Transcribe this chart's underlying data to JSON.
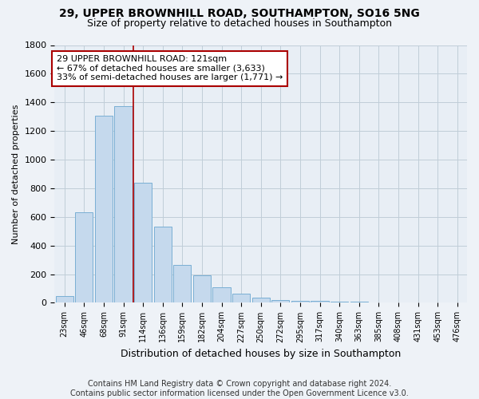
{
  "title": "29, UPPER BROWNHILL ROAD, SOUTHAMPTON, SO16 5NG",
  "subtitle": "Size of property relative to detached houses in Southampton",
  "xlabel": "Distribution of detached houses by size in Southampton",
  "ylabel": "Number of detached properties",
  "categories": [
    "23sqm",
    "46sqm",
    "68sqm",
    "91sqm",
    "114sqm",
    "136sqm",
    "159sqm",
    "182sqm",
    "204sqm",
    "227sqm",
    "250sqm",
    "272sqm",
    "295sqm",
    "317sqm",
    "340sqm",
    "363sqm",
    "385sqm",
    "408sqm",
    "431sqm",
    "453sqm",
    "476sqm"
  ],
  "values": [
    45,
    635,
    1305,
    1375,
    840,
    530,
    265,
    190,
    110,
    65,
    35,
    20,
    15,
    12,
    10,
    8,
    5,
    2,
    1,
    1,
    0
  ],
  "bar_color_normal": "#c5d9ed",
  "bar_edge_color": "#7aafd4",
  "highlight_index": 4,
  "annotation_text": "29 UPPER BROWNHILL ROAD: 121sqm\n← 67% of detached houses are smaller (3,633)\n33% of semi-detached houses are larger (1,771) →",
  "annotation_box_color": "#ffffff",
  "annotation_border_color": "#aa0000",
  "vline_color": "#aa0000",
  "vline_index": 4,
  "ylim": [
    0,
    1800
  ],
  "yticks": [
    0,
    200,
    400,
    600,
    800,
    1000,
    1200,
    1400,
    1600,
    1800
  ],
  "footer": "Contains HM Land Registry data © Crown copyright and database right 2024.\nContains public sector information licensed under the Open Government Licence v3.0.",
  "background_color": "#eef2f7",
  "plot_background_color": "#e8eef5",
  "grid_color": "#c0cdd8",
  "title_fontsize": 10,
  "subtitle_fontsize": 9,
  "annotation_fontsize": 8,
  "footer_fontsize": 7
}
